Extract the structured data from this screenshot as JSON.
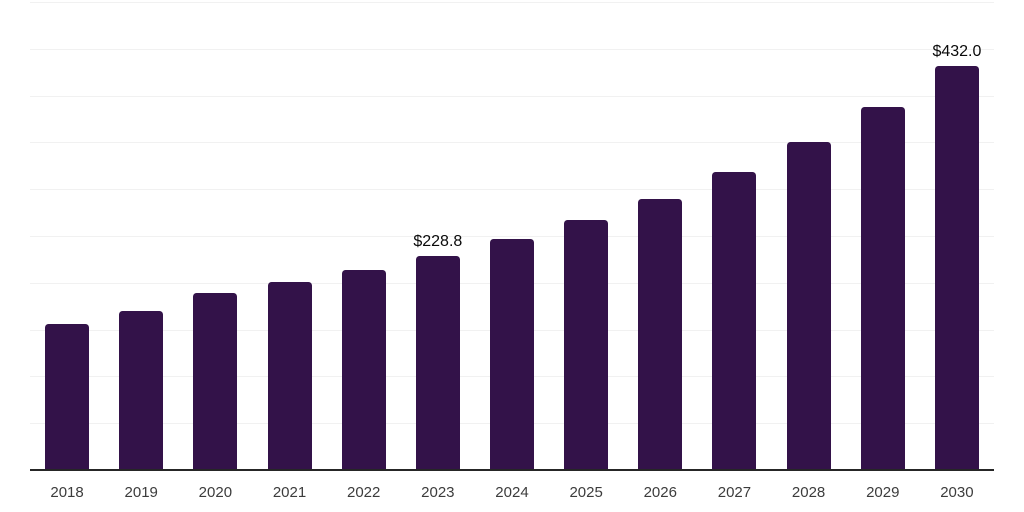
{
  "chart_data": {
    "type": "bar",
    "title": "",
    "xlabel": "",
    "ylabel": "",
    "categories": [
      "2018",
      "2019",
      "2020",
      "2021",
      "2022",
      "2023",
      "2024",
      "2025",
      "2026",
      "2027",
      "2028",
      "2029",
      "2030"
    ],
    "values": [
      156,
      170,
      189,
      201,
      214,
      228.8,
      247,
      267,
      290,
      318,
      350,
      388,
      432
    ],
    "value_labels": [
      {
        "category": "2023",
        "text": "$228.8"
      },
      {
        "category": "2030",
        "text": "$432.0"
      }
    ],
    "ylim": [
      0,
      500
    ],
    "ytick_step": 50,
    "y_axis_labels_visible": false,
    "grid": "horizontal",
    "legend": "none"
  },
  "colors": {
    "background": "#FFFFFF",
    "bar": "#331249",
    "gridline": "#F1F1F1",
    "axis_line": "#262626",
    "tick_label": "#3C3C3C",
    "value_label": "#0A0A0A"
  }
}
